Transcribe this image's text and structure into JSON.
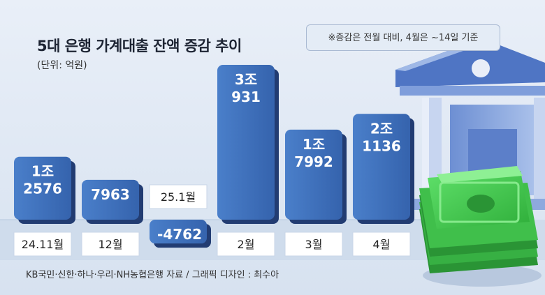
{
  "title": "5대 은행 가계대출 잔액 증감 추이",
  "unit_label": "(단위: 억원)",
  "note": "※증감은 전월 대비, 4월은 ~14일 기준",
  "source": "KB국민·신한·하나·우리·NH농협은행 자료 / 그래픽 디자인 : 최수아",
  "colors": {
    "bar_top": "#3d6fb8",
    "bar_side": "#223c72",
    "background": "#dfe8f4",
    "axis_band": "#ccdbec",
    "label_box": "#ffffff"
  },
  "chart_data": {
    "type": "bar",
    "categories": [
      "24.11월",
      "12월",
      "25.1월",
      "2월",
      "3월",
      "4월"
    ],
    "values": [
      12576,
      7963,
      -4762,
      30931,
      17992,
      21136
    ],
    "value_labels": [
      [
        "1조",
        "2576"
      ],
      [
        "7963"
      ],
      [
        "-4762"
      ],
      [
        "3조",
        "931"
      ],
      [
        "1조",
        "7992"
      ],
      [
        "2조",
        "1136"
      ]
    ],
    "title": "5대 은행 가계대출 잔액 증감 추이",
    "xlabel": "",
    "ylabel": "",
    "unit": "억원",
    "ylim": [
      -5000,
      31000
    ],
    "grid": false,
    "legend": "none"
  },
  "illustration": {
    "bank_icon": "bank-building-icon",
    "money_icon": "cash-stack-icon"
  }
}
